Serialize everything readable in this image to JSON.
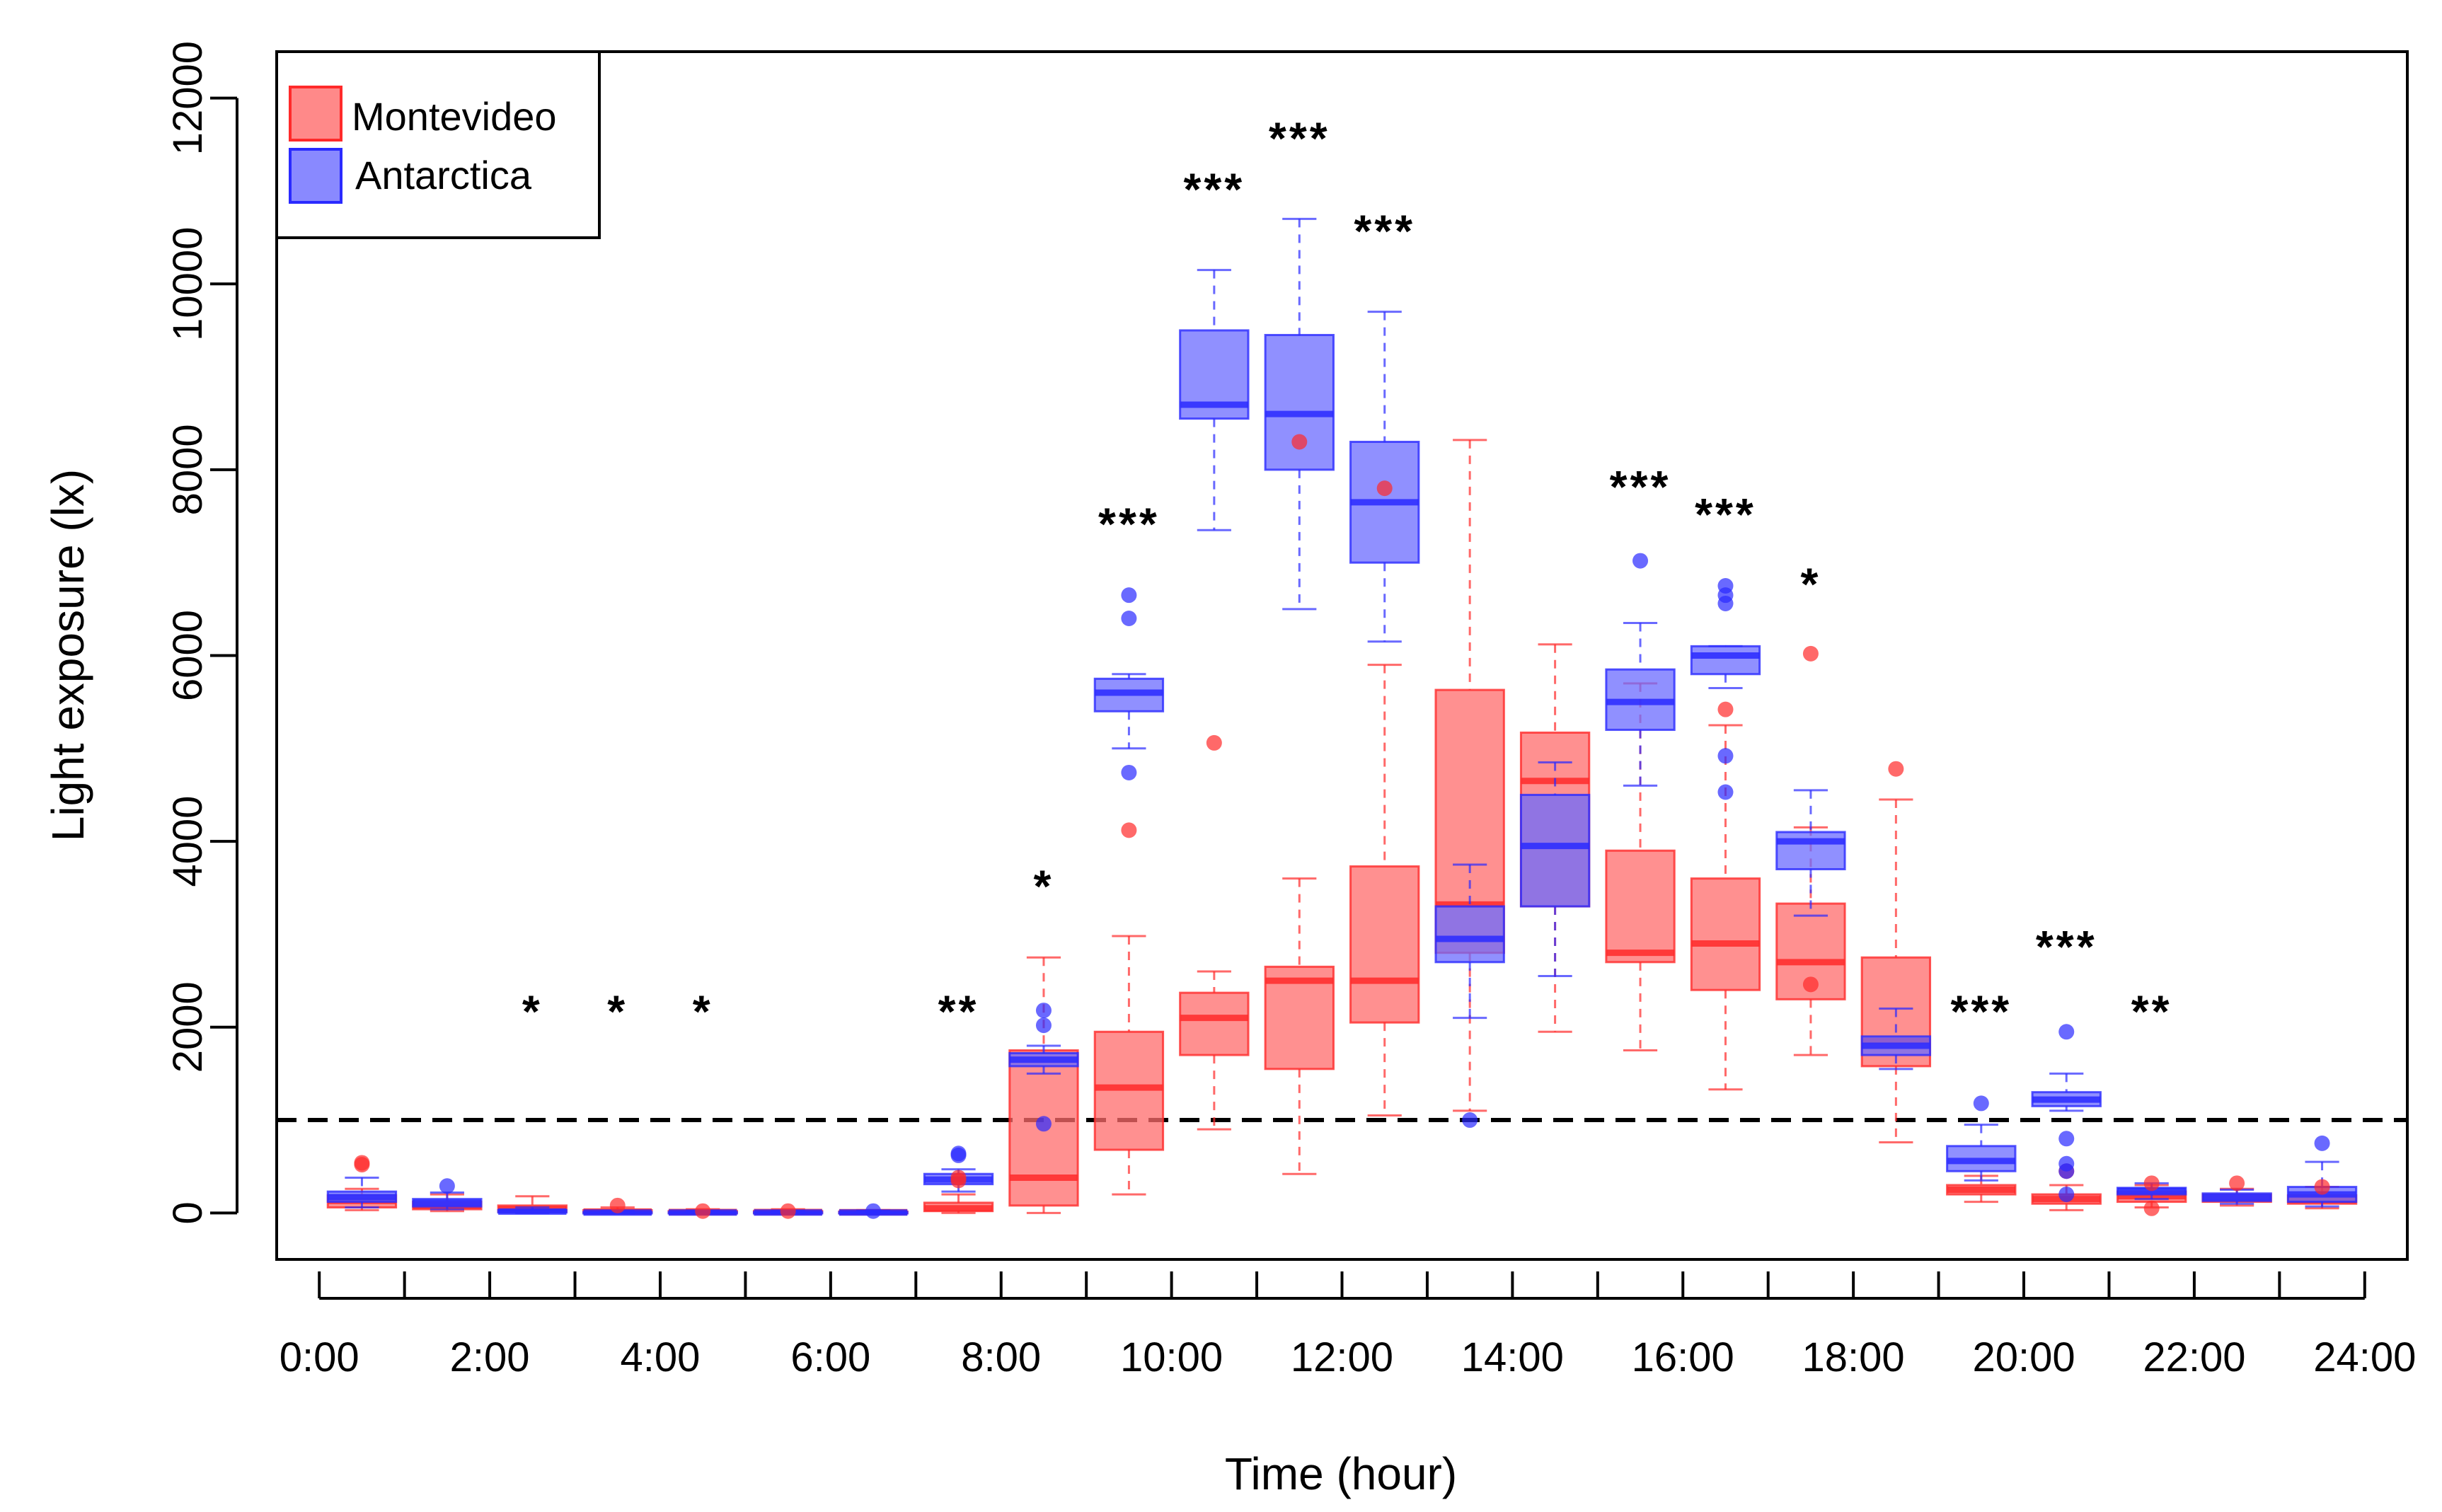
{
  "chart_data": {
    "type": "boxplot",
    "xlabel": "Time (hour)",
    "ylabel": "Light exposure (lx)",
    "ylim": [
      -500,
      12500
    ],
    "xlim": [
      -0.5,
      24.5
    ],
    "y_ticks": [
      0,
      2000,
      4000,
      6000,
      8000,
      10000,
      12000
    ],
    "x_ticks": [
      0,
      2,
      4,
      6,
      8,
      10,
      12,
      14,
      16,
      18,
      20,
      22,
      24
    ],
    "x_tick_labels": [
      "0:00",
      "2:00",
      "4:00",
      "6:00",
      "8:00",
      "10:00",
      "12:00",
      "14:00",
      "16:00",
      "18:00",
      "20:00",
      "22:00",
      "24:00"
    ],
    "threshold": 1000,
    "legend": {
      "position": "top-left",
      "entries": [
        {
          "label": "Montevideo",
          "color": "#ff6b6b"
        },
        {
          "label": "Antarctica",
          "color": "#6b6bff"
        }
      ]
    },
    "colors": {
      "montevideo_fill": "#ff6b6b",
      "montevideo_line": "#ff2a2a",
      "antarctica_fill": "#6b6bff",
      "antarctica_line": "#2a2aff"
    },
    "series": [
      {
        "name": "Montevideo",
        "boxes": [
          {
            "hour": 0,
            "min": 30,
            "q1": 60,
            "median": 130,
            "q3": 190,
            "max": 260,
            "outliers": [
              520,
              540
            ]
          },
          {
            "hour": 1,
            "min": 20,
            "q1": 40,
            "median": 80,
            "q3": 120,
            "max": 200,
            "outliers": []
          },
          {
            "hour": 2,
            "min": 5,
            "q1": 15,
            "median": 40,
            "q3": 80,
            "max": 180,
            "outliers": []
          },
          {
            "hour": 3,
            "min": 0,
            "q1": 5,
            "median": 15,
            "q3": 30,
            "max": 60,
            "outliers": [
              80
            ]
          },
          {
            "hour": 4,
            "min": 0,
            "q1": 3,
            "median": 10,
            "q3": 20,
            "max": 40,
            "outliers": [
              20
            ]
          },
          {
            "hour": 5,
            "min": 0,
            "q1": 3,
            "median": 10,
            "q3": 20,
            "max": 40,
            "outliers": [
              20
            ]
          },
          {
            "hour": 6,
            "min": 0,
            "q1": 3,
            "median": 8,
            "q3": 15,
            "max": 30,
            "outliers": []
          },
          {
            "hour": 7,
            "min": 0,
            "q1": 20,
            "median": 50,
            "q3": 110,
            "max": 200,
            "outliers": [
              350,
              380
            ]
          },
          {
            "hour": 8,
            "min": 0,
            "q1": 80,
            "median": 380,
            "q3": 1750,
            "max": 2750,
            "outliers": []
          },
          {
            "hour": 9,
            "min": 200,
            "q1": 680,
            "median": 1350,
            "q3": 1950,
            "max": 2980,
            "outliers": [
              4120
            ]
          },
          {
            "hour": 10,
            "min": 900,
            "q1": 1700,
            "median": 2100,
            "q3": 2370,
            "max": 2600,
            "outliers": [
              5060
            ]
          },
          {
            "hour": 11,
            "min": 420,
            "q1": 1550,
            "median": 2500,
            "q3": 2650,
            "max": 3600,
            "outliers": [
              8300
            ]
          },
          {
            "hour": 12,
            "min": 1050,
            "q1": 2050,
            "median": 2500,
            "q3": 3730,
            "max": 5900,
            "outliers": [
              7800
            ]
          },
          {
            "hour": 13,
            "min": 1100,
            "q1": 2800,
            "median": 3320,
            "q3": 5630,
            "max": 8320,
            "outliers": []
          },
          {
            "hour": 14,
            "min": 1950,
            "q1": 3300,
            "median": 4650,
            "q3": 5170,
            "max": 6120,
            "outliers": []
          },
          {
            "hour": 15,
            "min": 1750,
            "q1": 2700,
            "median": 2800,
            "q3": 3900,
            "max": 5700,
            "outliers": []
          },
          {
            "hour": 16,
            "min": 1330,
            "q1": 2400,
            "median": 2900,
            "q3": 3600,
            "max": 5250,
            "outliers": [
              5420
            ]
          },
          {
            "hour": 17,
            "min": 1700,
            "q1": 2300,
            "median": 2700,
            "q3": 3330,
            "max": 4150,
            "outliers": [
              6020,
              2460
            ]
          },
          {
            "hour": 18,
            "min": 760,
            "q1": 1580,
            "median": 1850,
            "q3": 2750,
            "max": 4450,
            "outliers": [
              4780
            ]
          },
          {
            "hour": 19,
            "min": 120,
            "q1": 200,
            "median": 250,
            "q3": 300,
            "max": 400,
            "outliers": []
          },
          {
            "hour": 20,
            "min": 30,
            "q1": 100,
            "median": 150,
            "q3": 200,
            "max": 300,
            "outliers": [
              450
            ]
          },
          {
            "hour": 21,
            "min": 60,
            "q1": 120,
            "median": 180,
            "q3": 230,
            "max": 300,
            "outliers": [
              320,
              50
            ]
          },
          {
            "hour": 22,
            "min": 80,
            "q1": 120,
            "median": 160,
            "q3": 200,
            "max": 260,
            "outliers": [
              320
            ]
          },
          {
            "hour": 23,
            "min": 50,
            "q1": 100,
            "median": 140,
            "q3": 190,
            "max": 280,
            "outliers": [
              280
            ]
          }
        ]
      },
      {
        "name": "Antarctica",
        "boxes": [
          {
            "hour": 0,
            "min": 60,
            "q1": 120,
            "median": 170,
            "q3": 230,
            "max": 380,
            "outliers": []
          },
          {
            "hour": 1,
            "min": 40,
            "q1": 70,
            "median": 110,
            "q3": 150,
            "max": 220,
            "outliers": [
              290
            ]
          },
          {
            "hour": 2,
            "min": 0,
            "q1": 5,
            "median": 15,
            "q3": 30,
            "max": 60,
            "outliers": []
          },
          {
            "hour": 3,
            "min": 0,
            "q1": 2,
            "median": 5,
            "q3": 10,
            "max": 20,
            "outliers": []
          },
          {
            "hour": 4,
            "min": 0,
            "q1": 2,
            "median": 5,
            "q3": 10,
            "max": 20,
            "outliers": []
          },
          {
            "hour": 5,
            "min": 0,
            "q1": 2,
            "median": 5,
            "q3": 10,
            "max": 20,
            "outliers": []
          },
          {
            "hour": 6,
            "min": 0,
            "q1": 2,
            "median": 5,
            "q3": 10,
            "max": 20,
            "outliers": [
              20
            ]
          },
          {
            "hour": 7,
            "min": 230,
            "q1": 310,
            "median": 360,
            "q3": 420,
            "max": 470,
            "outliers": [
              620,
              640
            ]
          },
          {
            "hour": 8,
            "min": 1500,
            "q1": 1580,
            "median": 1650,
            "q3": 1720,
            "max": 1800,
            "outliers": [
              2020,
              2180,
              960
            ]
          },
          {
            "hour": 9,
            "min": 5000,
            "q1": 5400,
            "median": 5600,
            "q3": 5750,
            "max": 5800,
            "outliers": [
              6650,
              6400,
              4740
            ]
          },
          {
            "hour": 10,
            "min": 7350,
            "q1": 8550,
            "median": 8700,
            "q3": 9500,
            "max": 10150,
            "outliers": []
          },
          {
            "hour": 11,
            "min": 6500,
            "q1": 8000,
            "median": 8600,
            "q3": 9450,
            "max": 10700,
            "outliers": []
          },
          {
            "hour": 12,
            "min": 6150,
            "q1": 7000,
            "median": 7650,
            "q3": 8300,
            "max": 9700,
            "outliers": []
          },
          {
            "hour": 13,
            "min": 2100,
            "q1": 2700,
            "median": 2950,
            "q3": 3300,
            "max": 3750,
            "outliers": [
              1000
            ]
          },
          {
            "hour": 14,
            "min": 2550,
            "q1": 3300,
            "median": 3950,
            "q3": 4500,
            "max": 4850,
            "outliers": []
          },
          {
            "hour": 15,
            "min": 4600,
            "q1": 5200,
            "median": 5500,
            "q3": 5850,
            "max": 6350,
            "outliers": [
              7020
            ]
          },
          {
            "hour": 16,
            "min": 5650,
            "q1": 5800,
            "median": 6000,
            "q3": 6100,
            "max": 6100,
            "outliers": [
              6750,
              6650,
              6560,
              4920,
              4530
            ]
          },
          {
            "hour": 17,
            "min": 3200,
            "q1": 3700,
            "median": 4000,
            "q3": 4100,
            "max": 4550,
            "outliers": []
          },
          {
            "hour": 18,
            "min": 1550,
            "q1": 1700,
            "median": 1800,
            "q3": 1900,
            "max": 2200,
            "outliers": []
          },
          {
            "hour": 19,
            "min": 350,
            "q1": 450,
            "median": 560,
            "q3": 720,
            "max": 950,
            "outliers": [
              1180
            ]
          },
          {
            "hour": 20,
            "min": 1100,
            "q1": 1150,
            "median": 1220,
            "q3": 1300,
            "max": 1500,
            "outliers": [
              1950,
              800,
              530,
              450,
              200
            ]
          },
          {
            "hour": 21,
            "min": 150,
            "q1": 200,
            "median": 240,
            "q3": 270,
            "max": 320,
            "outliers": []
          },
          {
            "hour": 22,
            "min": 100,
            "q1": 130,
            "median": 170,
            "q3": 210,
            "max": 250,
            "outliers": []
          },
          {
            "hour": 23,
            "min": 70,
            "q1": 120,
            "median": 200,
            "q3": 280,
            "max": 550,
            "outliers": [
              750
            ]
          }
        ]
      }
    ],
    "significance": [
      {
        "hour": 2,
        "label": "*",
        "y": 2000
      },
      {
        "hour": 3,
        "label": "*",
        "y": 2000
      },
      {
        "hour": 4,
        "label": "*",
        "y": 2000
      },
      {
        "hour": 7,
        "label": "**",
        "y": 2000
      },
      {
        "hour": 8,
        "label": "*",
        "y": 3350
      },
      {
        "hour": 9,
        "label": "***",
        "y": 7250
      },
      {
        "hour": 10,
        "label": "***",
        "y": 10850
      },
      {
        "hour": 11,
        "label": "***",
        "y": 11400
      },
      {
        "hour": 12,
        "label": "***",
        "y": 10400
      },
      {
        "hour": 15,
        "label": "***",
        "y": 7650
      },
      {
        "hour": 16,
        "label": "***",
        "y": 7350
      },
      {
        "hour": 17,
        "label": "*",
        "y": 6600
      },
      {
        "hour": 19,
        "label": "***",
        "y": 2000
      },
      {
        "hour": 20,
        "label": "***",
        "y": 2700
      },
      {
        "hour": 21,
        "label": "**",
        "y": 2000
      }
    ]
  }
}
